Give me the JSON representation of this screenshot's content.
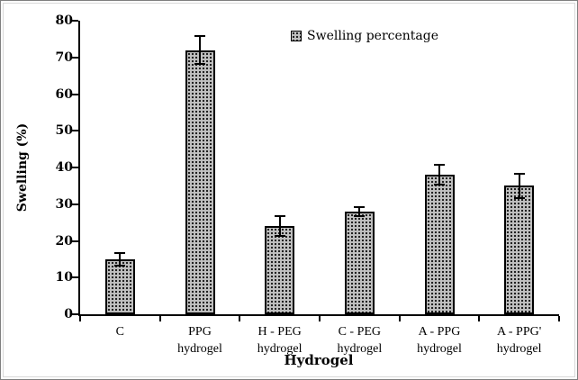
{
  "chart_data": {
    "type": "bar",
    "title": "",
    "legend": "Swelling percentage",
    "ylabel": "Swelling (%)",
    "xlabel": "Hydrogel",
    "ylim": [
      0,
      80
    ],
    "ytick_step": 10,
    "grid": false,
    "legend_position": "top-center-inside",
    "categories": [
      [
        "C"
      ],
      [
        "PPG",
        "hydrogel"
      ],
      [
        "H - PEG",
        "hydrogel"
      ],
      [
        "C - PEG",
        "hydrogel"
      ],
      [
        "A - PPG",
        "hydrogel"
      ],
      [
        "A - PPG'",
        "hydrogel"
      ]
    ],
    "values": [
      15,
      72,
      24,
      28,
      38,
      35
    ],
    "errors": [
      2,
      4,
      3,
      1.5,
      3,
      3.5
    ],
    "bar_fill": "#c0c0c0",
    "bar_dot_color": "#1a1a1a",
    "axis_color": "#000000"
  }
}
